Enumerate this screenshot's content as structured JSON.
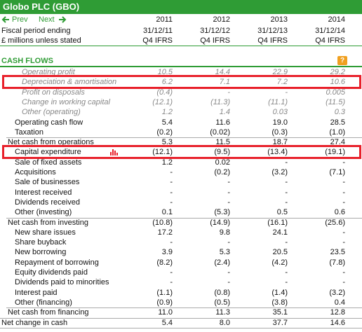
{
  "header": {
    "title": "Globo PLC (GBO)",
    "prev": "Prev",
    "next": "Next",
    "years": [
      "2011",
      "2012",
      "2013",
      "2014"
    ],
    "period_label": "Fiscal period ending",
    "periods": [
      "31/12/11",
      "31/12/12",
      "31/12/13",
      "31/12/14"
    ],
    "units_label": "£ millions unless stated",
    "basis": [
      "Q4 IFRS",
      "Q4 IFRS",
      "Q4 IFRS",
      "Q4 IFRS"
    ]
  },
  "section": {
    "title": "CASH FLOWS",
    "help": "?"
  },
  "table": {
    "rows": [
      {
        "label": "Operating profit",
        "values": [
          "10.5",
          "14.4",
          "22.9",
          "29.2"
        ],
        "style": "italic"
      },
      {
        "label": "Depreciation & amortisation",
        "values": [
          "6.2",
          "7.1",
          "7.2",
          "10.6"
        ],
        "style": "italic",
        "highlight": true
      },
      {
        "label": "Profit on disposals",
        "values": [
          "(0.4)",
          "-",
          "-",
          "0.005"
        ],
        "style": "italic"
      },
      {
        "label": "Change in working capital",
        "values": [
          "(12.1)",
          "(11.3)",
          "(11.1)",
          "(11.5)"
        ],
        "style": "italic"
      },
      {
        "label": "Other (operating)",
        "values": [
          "1.2",
          "1.4",
          "0.03",
          "0.3"
        ],
        "style": "italic"
      },
      {
        "label": "Operating cash flow",
        "values": [
          "5.4",
          "11.6",
          "19.0",
          "28.5"
        ],
        "style": "item"
      },
      {
        "label": "Taxation",
        "values": [
          "(0.2)",
          "(0.02)",
          "(0.3)",
          "(1.0)"
        ],
        "style": "item"
      },
      {
        "label": "Net cash from operations",
        "values": [
          "5.3",
          "11.5",
          "18.7",
          "27.4"
        ],
        "style": "total"
      },
      {
        "label": "Capital expenditure",
        "values": [
          "(12.1)",
          "(9.5)",
          "(13.4)",
          "(19.1)"
        ],
        "style": "item",
        "highlight": true
      },
      {
        "label": "Sale of fixed assets",
        "values": [
          "1.2",
          "0.02",
          "-",
          "-"
        ],
        "style": "item"
      },
      {
        "label": "Acquisitions",
        "values": [
          "-",
          "(0.2)",
          "(3.2)",
          "(7.1)"
        ],
        "style": "item"
      },
      {
        "label": "Sale of businesses",
        "values": [
          "-",
          "-",
          "-",
          "-"
        ],
        "style": "item"
      },
      {
        "label": "Interest received",
        "values": [
          "-",
          "-",
          "-",
          "-"
        ],
        "style": "item"
      },
      {
        "label": "Dividends received",
        "values": [
          "-",
          "-",
          "-",
          "-"
        ],
        "style": "item"
      },
      {
        "label": "Other (investing)",
        "values": [
          "0.1",
          "(5.3)",
          "0.5",
          "0.6"
        ],
        "style": "item"
      },
      {
        "label": "Net cash from investing",
        "values": [
          "(10.8)",
          "(14.9)",
          "(16.1)",
          "(25.6)"
        ],
        "style": "total"
      },
      {
        "label": "New share issues",
        "values": [
          "17.2",
          "9.8",
          "24.1",
          "-"
        ],
        "style": "item"
      },
      {
        "label": "Share buyback",
        "values": [
          "-",
          "-",
          "-",
          "-"
        ],
        "style": "item"
      },
      {
        "label": "New borrowing",
        "values": [
          "3.9",
          "5.3",
          "20.5",
          "23.5"
        ],
        "style": "item"
      },
      {
        "label": "Repayment of borrowing",
        "values": [
          "(8.2)",
          "(2.4)",
          "(4.2)",
          "(7.8)"
        ],
        "style": "item"
      },
      {
        "label": "Equity dividends paid",
        "values": [
          "-",
          "-",
          "-",
          "-"
        ],
        "style": "item"
      },
      {
        "label": "Dividends paid to minorities",
        "values": [
          "-",
          "-",
          "-",
          "-"
        ],
        "style": "item"
      },
      {
        "label": "Interest paid",
        "values": [
          "(1.1)",
          "(0.8)",
          "(1.4)",
          "(3.2)"
        ],
        "style": "item"
      },
      {
        "label": "Other (financing)",
        "values": [
          "(0.9)",
          "(0.5)",
          "(3.8)",
          "0.4"
        ],
        "style": "item"
      },
      {
        "label": "Net cash from financing",
        "values": [
          "11.0",
          "11.3",
          "35.1",
          "12.8"
        ],
        "style": "total"
      },
      {
        "label": "Net change in cash",
        "values": [
          "5.4",
          "8.0",
          "37.7",
          "14.6"
        ],
        "style": "grand"
      }
    ]
  }
}
